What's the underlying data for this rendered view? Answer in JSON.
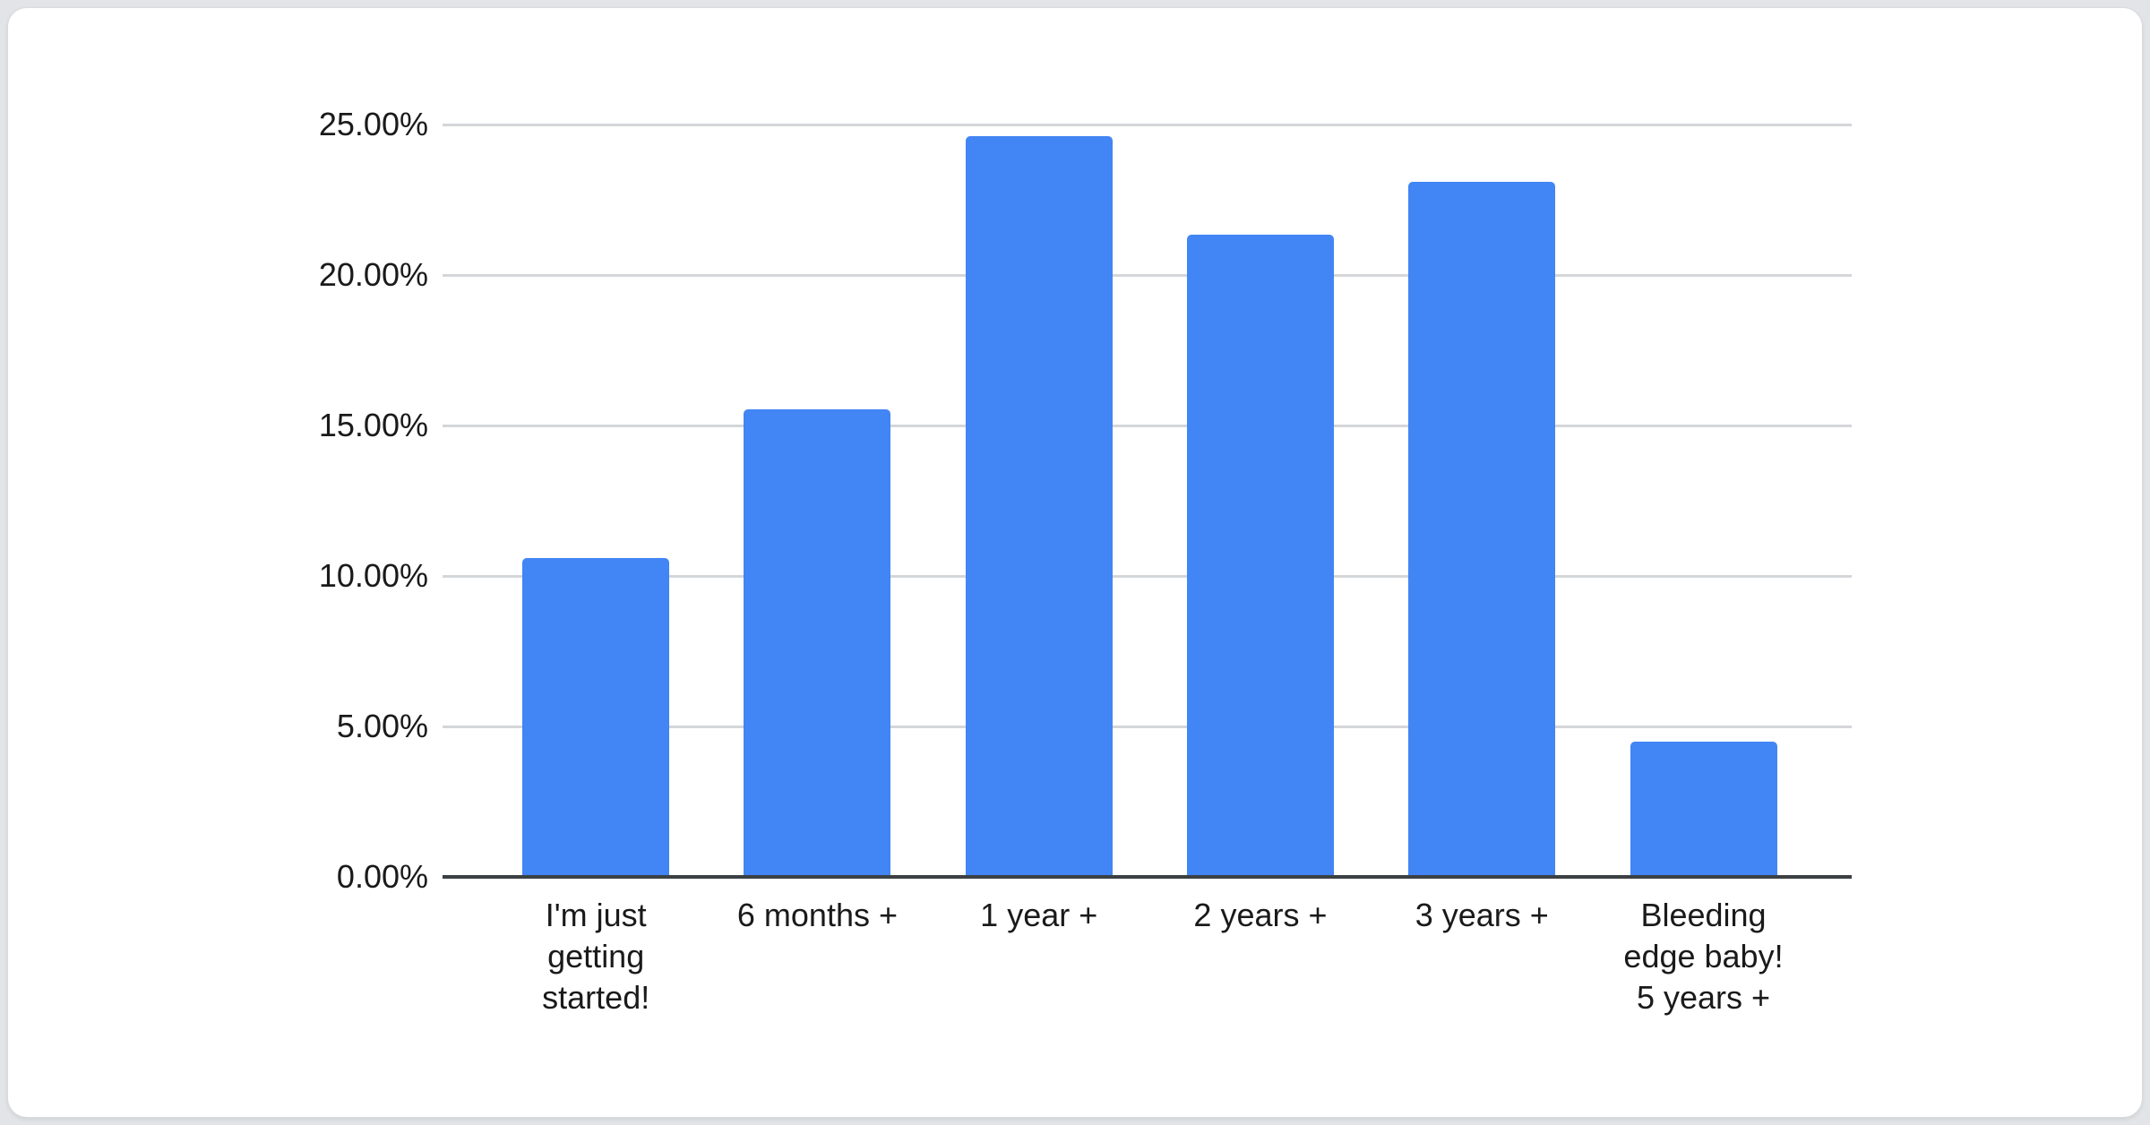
{
  "page": {
    "background_color": "#e2e4e7",
    "card_background": "#ffffff",
    "card_border_color": "#d9dbde"
  },
  "chart_data": {
    "type": "bar",
    "title": "",
    "xlabel": "",
    "ylabel": "",
    "categories": [
      "I'm just\ngetting\nstarted!",
      "6 months +",
      "1 year +",
      "2 years +",
      "3 years +",
      "Bleeding\nedge baby!\n5 years +"
    ],
    "values": [
      10.6,
      15.55,
      24.6,
      21.35,
      23.1,
      4.5
    ],
    "value_unit": "percent",
    "ylim": [
      0,
      25
    ],
    "y_ticks": [
      {
        "value": 25,
        "label": "25.00%"
      },
      {
        "value": 20,
        "label": "20.00%"
      },
      {
        "value": 15,
        "label": "15.00%"
      },
      {
        "value": 10,
        "label": "10.00%"
      },
      {
        "value": 5,
        "label": "5.00%"
      },
      {
        "value": 0,
        "label": "0.00%"
      }
    ],
    "grid": "horizontal",
    "legend": "none",
    "bar_color": "#4285f4",
    "grid_color": "#d4d6d9",
    "axis_color": "#3c4043",
    "label_color": "#1a1a1a"
  }
}
